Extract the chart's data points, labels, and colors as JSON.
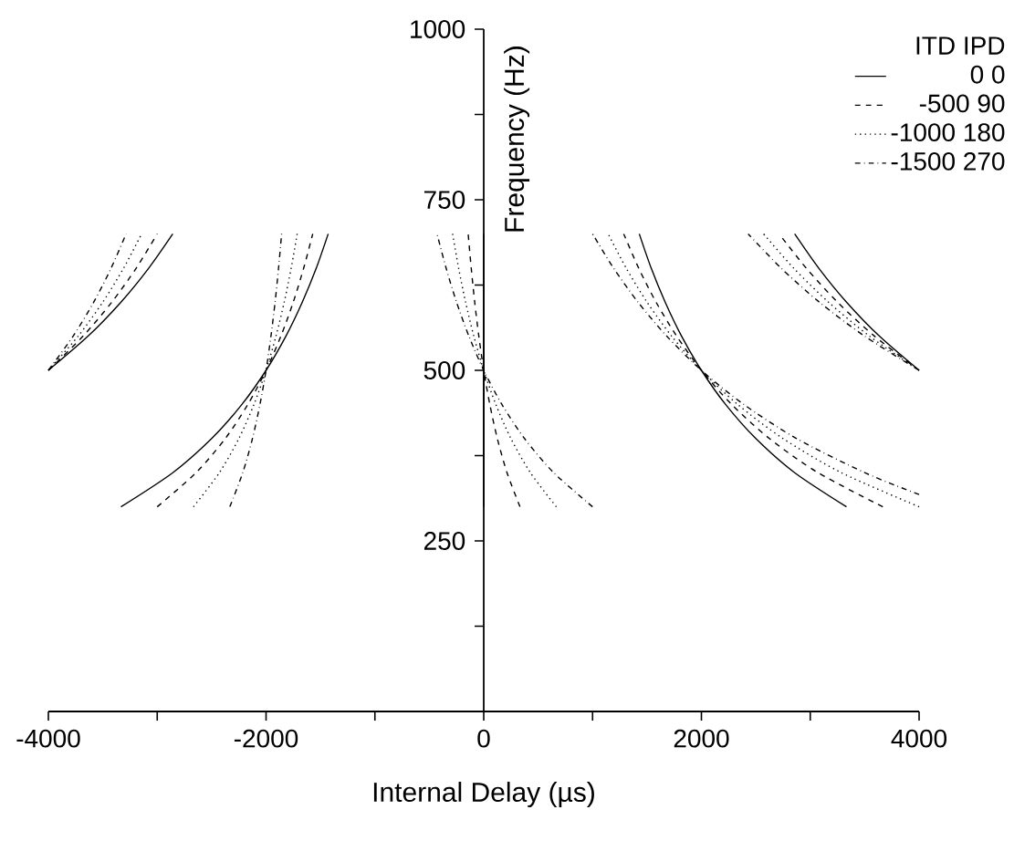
{
  "chart_data": {
    "type": "line",
    "xlabel": "Internal Delay (µs)",
    "ylabel": "Frequency (Hz)",
    "legend_title": "ITD    IPD",
    "xlim": [
      -4000,
      4000
    ],
    "ylim": [
      0,
      1000
    ],
    "xticks": [
      -4000,
      {
        "value": -3000,
        "label": null
      },
      -2000,
      {
        "value": -1000,
        "label": null
      },
      0,
      {
        "value": 1000,
        "label": null
      },
      2000,
      {
        "value": 3000,
        "label": null
      },
      4000
    ],
    "yticks": [
      {
        "value": 125,
        "label": null
      },
      250,
      {
        "value": 375,
        "label": null
      },
      500,
      {
        "value": 625,
        "label": null
      },
      750,
      {
        "value": 875,
        "label": null
      },
      1000
    ],
    "legend": "top right",
    "marker": "none",
    "grid": false,
    "series": [
      {
        "name": "0    0",
        "color": "#000000",
        "line_style": "solid",
        "x": [
          -4000,
          -3636,
          -3333,
          -3077,
          -2857,
          null,
          -3333,
          -2857,
          -2500,
          -2222,
          -2000,
          -1818,
          -1667,
          -1538,
          -1429,
          null,
          0,
          0,
          null,
          3333,
          2857,
          2500,
          2222,
          2000,
          1818,
          1667,
          1538,
          1429,
          null,
          4000,
          3636,
          3333,
          3077,
          2857
        ],
        "values": [
          500,
          550,
          600,
          650,
          700,
          null,
          300,
          350,
          400,
          450,
          500,
          550,
          600,
          650,
          700,
          null,
          300,
          700,
          null,
          300,
          350,
          400,
          450,
          500,
          550,
          600,
          650,
          700,
          null,
          500,
          550,
          600,
          650,
          700
        ]
      },
      {
        "name": "-500    90",
        "color": "#000000",
        "line_style": "dashed",
        "x": [
          -4000,
          -3682,
          -3417,
          -3192,
          -3000,
          null,
          -3000,
          -2643,
          -2375,
          -2167,
          -2000,
          -1864,
          -1750,
          -1654,
          -1571,
          null,
          333,
          214,
          125,
          56,
          0,
          -45,
          -83,
          -115,
          -143,
          null,
          3667,
          3071,
          2625,
          2278,
          2000,
          1773,
          1583,
          1423,
          1286,
          null,
          4000,
          3591,
          3250,
          2962,
          2714
        ],
        "values": [
          500,
          550,
          600,
          650,
          700,
          null,
          300,
          350,
          400,
          450,
          500,
          550,
          600,
          650,
          700,
          null,
          300,
          350,
          400,
          450,
          500,
          550,
          600,
          650,
          700,
          null,
          300,
          350,
          400,
          450,
          500,
          550,
          600,
          650,
          700,
          null,
          500,
          550,
          600,
          650,
          700
        ]
      },
      {
        "name": "-1000    180",
        "color": "#000000",
        "line_style": "dotted",
        "x": [
          -4000,
          -3727,
          -3500,
          -3308,
          -3143,
          null,
          -2667,
          -2429,
          -2250,
          -2111,
          -2000,
          -1909,
          -1833,
          -1769,
          -1714,
          null,
          667,
          429,
          250,
          111,
          0,
          -91,
          -167,
          -231,
          -286,
          null,
          4000,
          3286,
          2750,
          2333,
          2000,
          1727,
          1500,
          1308,
          1143,
          null,
          4000,
          3545,
          3167,
          2846,
          2571
        ],
        "values": [
          500,
          550,
          600,
          650,
          700,
          null,
          300,
          350,
          400,
          450,
          500,
          550,
          600,
          650,
          700,
          null,
          300,
          350,
          400,
          450,
          500,
          550,
          600,
          650,
          700,
          null,
          300,
          350,
          400,
          450,
          500,
          550,
          600,
          650,
          700,
          null,
          500,
          550,
          600,
          650,
          700
        ]
      },
      {
        "name": "-1500    270",
        "color": "#000000",
        "line_style": "dashdot",
        "x": [
          -4000,
          -3773,
          -3583,
          -3423,
          -3286,
          null,
          -2333,
          -2214,
          -2125,
          -2056,
          -2000,
          -1955,
          -1917,
          -1885,
          -1857,
          null,
          1000,
          643,
          375,
          167,
          0,
          -136,
          -250,
          -346,
          -429,
          null,
          4000,
          3500,
          2875,
          2389,
          2000,
          1682,
          1417,
          1192,
          1000,
          null,
          4000,
          3500,
          3083,
          2731,
          2429
        ],
        "values": [
          500,
          550,
          600,
          650,
          700,
          null,
          300,
          350,
          400,
          450,
          500,
          550,
          600,
          650,
          700,
          null,
          300,
          350,
          400,
          450,
          500,
          550,
          600,
          650,
          700,
          null,
          318,
          350,
          400,
          450,
          500,
          550,
          600,
          650,
          700,
          null,
          500,
          550,
          600,
          650,
          700
        ]
      }
    ]
  }
}
